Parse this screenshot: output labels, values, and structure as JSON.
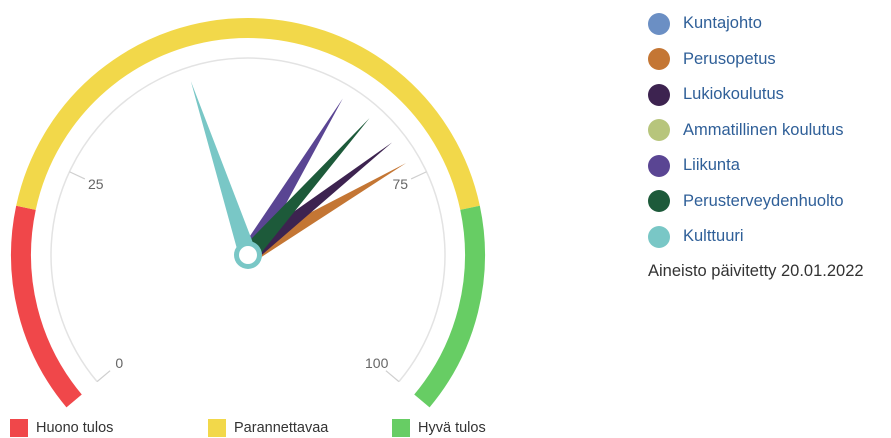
{
  "chart_data": {
    "type": "gauge",
    "axis": {
      "min": 0,
      "max": 100,
      "tick_labels": [
        "0",
        "25",
        "75",
        "100"
      ]
    },
    "bands": [
      {
        "name": "Huono tulos",
        "from": 0,
        "to": 20,
        "color": "#f0474a"
      },
      {
        "name": "Parannettavaa",
        "from": 20,
        "to": 80,
        "color": "#f2d84a"
      },
      {
        "name": "Hyvä tulos",
        "from": 80,
        "to": 100,
        "color": "#67cd64"
      }
    ],
    "series": [
      {
        "name": "Kuntajohto",
        "value": null,
        "color": "#6b8fc4"
      },
      {
        "name": "Perusopetus",
        "value": 73,
        "color": "#c47634"
      },
      {
        "name": "Lukiokoulutus",
        "value": 70,
        "color": "#3d2350"
      },
      {
        "name": "Ammatillinen koulutus",
        "value": null,
        "color": "#b7c57c"
      },
      {
        "name": "Liikunta",
        "value": 62,
        "color": "#5a4593"
      },
      {
        "name": "Perusterveydenhuolto",
        "value": 66,
        "color": "#1d5a3a"
      },
      {
        "name": "Kulttuuri",
        "value": 43,
        "color": "#79c7c6"
      }
    ]
  },
  "footer": {
    "updated_text": "Aineisto päivitetty 20.01.2022"
  }
}
